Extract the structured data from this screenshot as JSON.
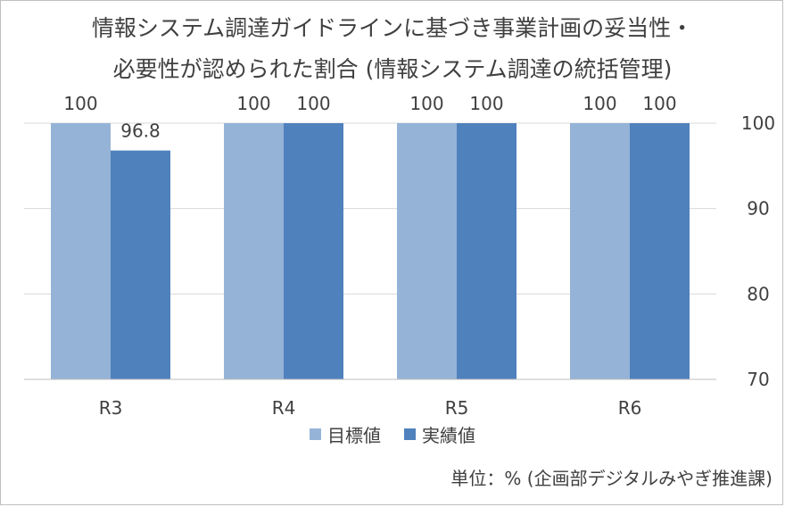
{
  "chart_data": {
    "type": "bar",
    "title_lines": [
      "情報システム調達ガイドラインに基づき事業計画の妥当性・",
      "必要性が認められた割合 (情報システム調達の統括管理)"
    ],
    "categories": [
      "R3",
      "R4",
      "R5",
      "R6"
    ],
    "series": [
      {
        "name": "目標値",
        "values": [
          100,
          100,
          100,
          100
        ],
        "color": "#95b3d7"
      },
      {
        "name": "実績値",
        "values": [
          96.8,
          100,
          100,
          100
        ],
        "color": "#4f81bd"
      }
    ],
    "data_labels": [
      [
        "100",
        "100",
        "100",
        "100"
      ],
      [
        "96.8",
        "100",
        "100",
        "100"
      ]
    ],
    "ylim": [
      70,
      100
    ],
    "yticks": [
      "70",
      "80",
      "90",
      "100"
    ],
    "y_axis_side": "right",
    "grid": true,
    "legend_position": "bottom",
    "note": "単位：% (企画部デジタルみやぎ推進課)"
  }
}
